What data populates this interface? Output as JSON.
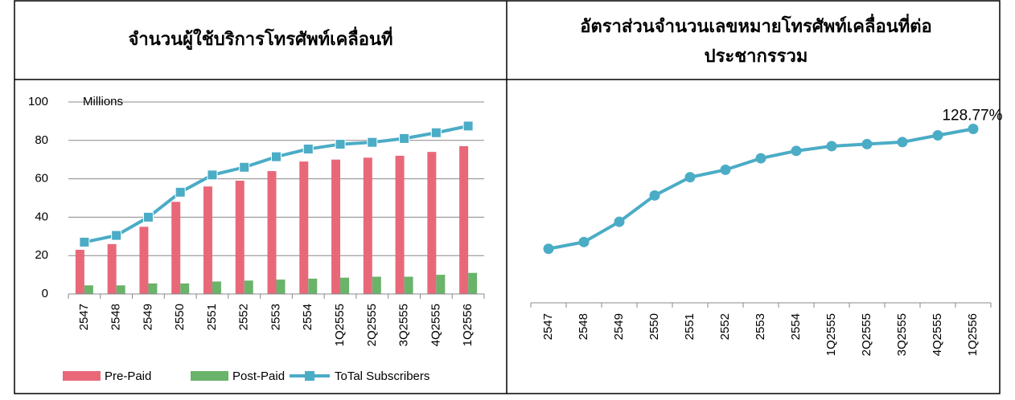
{
  "chart_data": [
    {
      "type": "bar-line",
      "title": "จำนวนผู้ใช้บริการโทรศัพท์เคลื่อนที่",
      "y_label": "Millions",
      "categories": [
        "2547",
        "2548",
        "2549",
        "2550",
        "2551",
        "2552",
        "2553",
        "2554",
        "1Q2555",
        "2Q2555",
        "3Q2555",
        "4Q2555",
        "1Q2556"
      ],
      "series": [
        {
          "name": "Pre-Paid",
          "kind": "bar",
          "color": "#e8687a",
          "values": [
            23,
            26,
            35,
            48,
            56,
            59,
            64,
            69,
            70,
            71,
            72,
            74,
            77
          ]
        },
        {
          "name": "Post-Paid",
          "kind": "bar",
          "color": "#6ab36a",
          "values": [
            4.5,
            4.5,
            5.5,
            5.5,
            6.5,
            7,
            7.5,
            8,
            8.5,
            9,
            9,
            10,
            11
          ]
        },
        {
          "name": "ToTal Subscribers",
          "kind": "line",
          "color": "#4bacc6",
          "values": [
            27,
            30.5,
            40,
            53,
            62,
            66,
            71.5,
            75.5,
            78,
            79,
            81,
            84,
            87.5
          ]
        }
      ],
      "ylim": [
        0,
        100
      ],
      "yticks": [
        0,
        20,
        40,
        60,
        80,
        100
      ],
      "grid": true
    },
    {
      "type": "line",
      "title": "อัตราส่วนจำนวนเลขหมายโทรศัพท์เคลื่อนที่ต่อประชากรรวม",
      "categories": [
        "2547",
        "2548",
        "2549",
        "2550",
        "2551",
        "2552",
        "2553",
        "2554",
        "1Q2555",
        "2Q2555",
        "3Q2555",
        "4Q2555",
        "1Q2556"
      ],
      "color": "#4bacc6",
      "values": [
        40,
        45,
        60,
        79.5,
        93,
        98.5,
        107,
        112.5,
        116,
        117.5,
        119,
        124,
        128.77
      ],
      "value_labels": [
        null,
        null,
        null,
        null,
        null,
        null,
        null,
        null,
        null,
        null,
        null,
        null,
        "128.77%"
      ],
      "ylim": [
        0,
        135
      ]
    }
  ]
}
